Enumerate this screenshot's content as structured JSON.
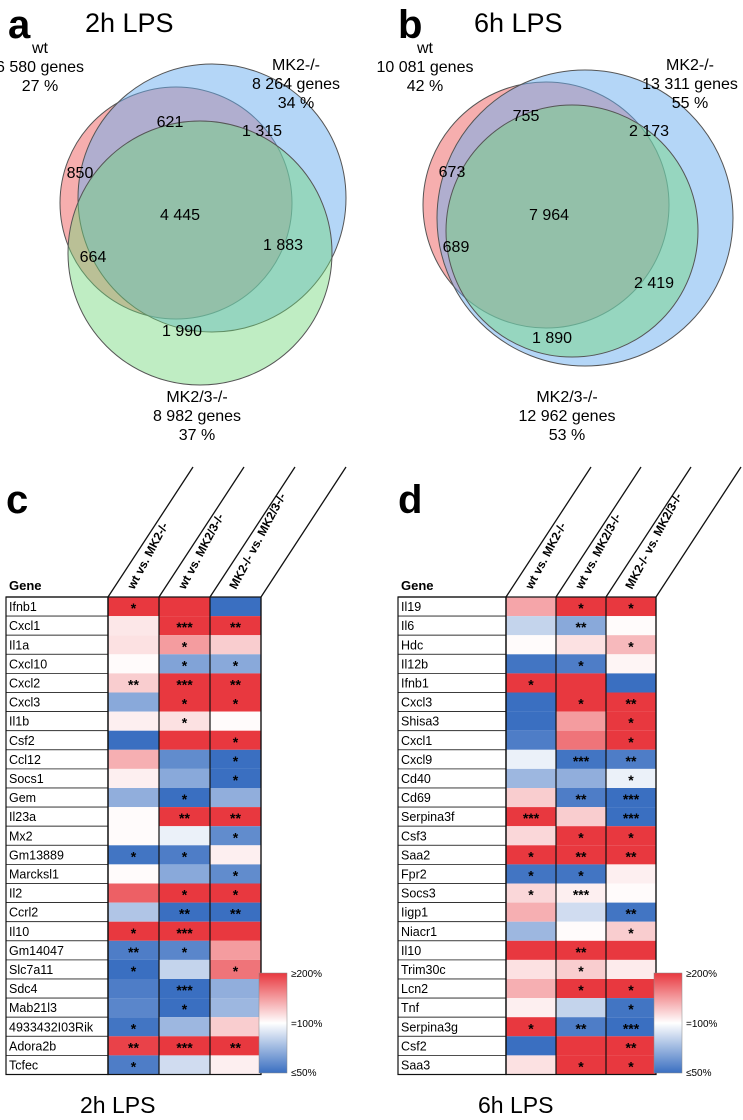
{
  "panels": {
    "a": {
      "label": "a",
      "title": "2h LPS",
      "sets": [
        {
          "lines": [
            "wt",
            "6 580 genes",
            "27 %"
          ],
          "color": "#ef6b6b"
        },
        {
          "lines": [
            "MK2-/-",
            "8 264 genes",
            "34 %"
          ],
          "color": "#6aaef0"
        },
        {
          "lines": [
            "MK2/3-/-",
            "8 982 genes",
            "37 %"
          ],
          "color": "#72d87a"
        }
      ],
      "regions": {
        "wt_only": "850",
        "wt_mk2": "621",
        "mk2_only": "1 315",
        "all": "4 445",
        "wt_mk23": "664",
        "mk2_mk23": "1 883",
        "mk23_only": "1 990"
      }
    },
    "b": {
      "label": "b",
      "title": "6h LPS",
      "sets": [
        {
          "lines": [
            "wt",
            "10 081 genes",
            "42 %"
          ],
          "color": "#ef6b6b"
        },
        {
          "lines": [
            "MK2-/-",
            "13 311 genes",
            "55 %"
          ],
          "color": "#6aaef0"
        },
        {
          "lines": [
            "MK2/3-/-",
            "12 962 genes",
            "53 %"
          ],
          "color": "#72d87a"
        }
      ],
      "regions": {
        "wt_only": "673",
        "wt_mk2": "755",
        "mk2_only": "2 173",
        "all": "7 964",
        "wt_mk23": "689",
        "mk2_mk23": "2 419",
        "mk23_only": "1 890"
      }
    },
    "c": {
      "label": "c",
      "title": "2h LPS",
      "gene_header": "Gene",
      "columns": [
        "wt vs. MK2-/-",
        "wt vs. MK2/3-/-",
        "MK2-/- vs. MK2/3-/-"
      ],
      "rows": [
        {
          "gene": "Ifnb1",
          "v": [
            220,
            230,
            45
          ],
          "s": [
            "*",
            "",
            ""
          ]
        },
        {
          "gene": "Cxcl1",
          "v": [
            112,
            200,
            200
          ],
          "s": [
            "",
            "***",
            "**"
          ]
        },
        {
          "gene": "Il1a",
          "v": [
            115,
            150,
            125
          ],
          "s": [
            "",
            "*",
            ""
          ]
        },
        {
          "gene": "Cxcl10",
          "v": [
            102,
            68,
            70
          ],
          "s": [
            "",
            "*",
            "*"
          ]
        },
        {
          "gene": "Cxcl2",
          "v": [
            125,
            200,
            200
          ],
          "s": [
            "**",
            "***",
            "**"
          ]
        },
        {
          "gene": "Cxcl3",
          "v": [
            70,
            200,
            200
          ],
          "s": [
            "",
            "*",
            "*"
          ]
        },
        {
          "gene": "Il1b",
          "v": [
            108,
            115,
            102
          ],
          "s": [
            "",
            "*",
            ""
          ]
        },
        {
          "gene": "Csf2",
          "v": [
            48,
            200,
            200
          ],
          "s": [
            "",
            "",
            "*"
          ]
        },
        {
          "gene": "Ccl12",
          "v": [
            140,
            60,
            45
          ],
          "s": [
            "",
            "",
            "*"
          ]
        },
        {
          "gene": "Socs1",
          "v": [
            108,
            70,
            48
          ],
          "s": [
            "",
            "",
            "*"
          ]
        },
        {
          "gene": "Gem",
          "v": [
            72,
            50,
            72
          ],
          "s": [
            "",
            "*",
            ""
          ]
        },
        {
          "gene": "Il23a",
          "v": [
            102,
            200,
            200
          ],
          "s": [
            "",
            "**",
            "**"
          ]
        },
        {
          "gene": "Mx2",
          "v": [
            102,
            95,
            60
          ],
          "s": [
            "",
            "",
            "*"
          ]
        },
        {
          "gene": "Gm13889",
          "v": [
            52,
            55,
            108
          ],
          "s": [
            "*",
            "*",
            ""
          ]
        },
        {
          "gene": "Marcksl1",
          "v": [
            102,
            70,
            60
          ],
          "s": [
            "",
            "",
            "*"
          ]
        },
        {
          "gene": "Il2",
          "v": [
            180,
            200,
            200
          ],
          "s": [
            "",
            "*",
            "*"
          ]
        },
        {
          "gene": "Ccrl2",
          "v": [
            80,
            50,
            50
          ],
          "s": [
            "",
            "**",
            "**"
          ]
        },
        {
          "gene": "Il10",
          "v": [
            200,
            200,
            200
          ],
          "s": [
            "*",
            "***",
            ""
          ]
        },
        {
          "gene": "Gm14047",
          "v": [
            55,
            58,
            150
          ],
          "s": [
            "**",
            "*",
            ""
          ]
        },
        {
          "gene": "Slc7a11",
          "v": [
            50,
            85,
            170
          ],
          "s": [
            "*",
            "",
            "*"
          ]
        },
        {
          "gene": "Sdc4",
          "v": [
            55,
            50,
            72
          ],
          "s": [
            "",
            "***",
            ""
          ]
        },
        {
          "gene": "Mab21l3",
          "v": [
            58,
            50,
            75
          ],
          "s": [
            "",
            "*",
            ""
          ]
        },
        {
          "gene": "4933432I03Rik",
          "v": [
            52,
            75,
            125
          ],
          "s": [
            "*",
            "",
            ""
          ]
        },
        {
          "gene": "Adora2b",
          "v": [
            195,
            200,
            200
          ],
          "s": [
            "**",
            "***",
            "**"
          ]
        },
        {
          "gene": "Tcfec",
          "v": [
            55,
            88,
            108
          ],
          "s": [
            "*",
            "",
            ""
          ]
        }
      ],
      "legend": {
        "top": "≥200%",
        "mid": "=100%",
        "bottom": "≤50%"
      }
    },
    "d": {
      "label": "d",
      "title": "6h LPS",
      "gene_header": "Gene",
      "columns": [
        "wt vs. MK2-/-",
        "wt vs. MK2/3-/-",
        "MK2-/- vs. MK2/3-/-"
      ],
      "rows": [
        {
          "gene": "Il19",
          "v": [
            145,
            200,
            200
          ],
          "s": [
            "",
            "*",
            "*"
          ]
        },
        {
          "gene": "Il6",
          "v": [
            85,
            70,
            102
          ],
          "s": [
            "",
            "**",
            ""
          ]
        },
        {
          "gene": "Hdc",
          "v": [
            102,
            115,
            135
          ],
          "s": [
            "",
            "",
            "*"
          ]
        },
        {
          "gene": "Il12b",
          "v": [
            52,
            55,
            105
          ],
          "s": [
            "",
            "*",
            ""
          ]
        },
        {
          "gene": "Ifnb1",
          "v": [
            200,
            200,
            48
          ],
          "s": [
            "*",
            "",
            ""
          ]
        },
        {
          "gene": "Cxcl3",
          "v": [
            48,
            200,
            200
          ],
          "s": [
            "",
            "*",
            "**"
          ]
        },
        {
          "gene": "Shisa3",
          "v": [
            48,
            150,
            200
          ],
          "s": [
            "",
            "",
            "*"
          ]
        },
        {
          "gene": "Cxcl1",
          "v": [
            55,
            170,
            200
          ],
          "s": [
            "",
            "",
            "*"
          ]
        },
        {
          "gene": "Cxcl9",
          "v": [
            95,
            52,
            55
          ],
          "s": [
            "",
            "***",
            "**"
          ]
        },
        {
          "gene": "Cd40",
          "v": [
            75,
            72,
            95
          ],
          "s": [
            "",
            "",
            "*"
          ]
        },
        {
          "gene": "Cd69",
          "v": [
            125,
            55,
            50
          ],
          "s": [
            "",
            "**",
            "***"
          ]
        },
        {
          "gene": "Serpina3f",
          "v": [
            200,
            125,
            50
          ],
          "s": [
            "***",
            "",
            "***"
          ]
        },
        {
          "gene": "Csf3",
          "v": [
            120,
            200,
            200
          ],
          "s": [
            "",
            "*",
            "*"
          ]
        },
        {
          "gene": "Saa2",
          "v": [
            200,
            200,
            200
          ],
          "s": [
            "*",
            "**",
            "**"
          ]
        },
        {
          "gene": "Fpr2",
          "v": [
            52,
            52,
            108
          ],
          "s": [
            "*",
            "*",
            ""
          ]
        },
        {
          "gene": "Socs3",
          "v": [
            120,
            108,
            102
          ],
          "s": [
            "*",
            "***",
            ""
          ]
        },
        {
          "gene": "Iigp1",
          "v": [
            140,
            88,
            52
          ],
          "s": [
            "",
            "",
            "**"
          ]
        },
        {
          "gene": "Niacr1",
          "v": [
            75,
            102,
            125
          ],
          "s": [
            "",
            "",
            "*"
          ]
        },
        {
          "gene": "Il10",
          "v": [
            200,
            200,
            200
          ],
          "s": [
            "",
            "**",
            ""
          ]
        },
        {
          "gene": "Trim30c",
          "v": [
            115,
            125,
            110
          ],
          "s": [
            "",
            "*",
            ""
          ]
        },
        {
          "gene": "Lcn2",
          "v": [
            140,
            200,
            200
          ],
          "s": [
            "",
            "*",
            "*"
          ]
        },
        {
          "gene": "Tnf",
          "v": [
            108,
            85,
            52
          ],
          "s": [
            "",
            "",
            "*"
          ]
        },
        {
          "gene": "Serpina3g",
          "v": [
            200,
            55,
            50
          ],
          "s": [
            "*",
            "**",
            "***"
          ]
        },
        {
          "gene": "Csf2",
          "v": [
            50,
            200,
            200
          ],
          "s": [
            "",
            "",
            "**"
          ]
        },
        {
          "gene": "Saa3",
          "v": [
            115,
            200,
            200
          ],
          "s": [
            "",
            "*",
            "*"
          ]
        }
      ],
      "legend": {
        "top": "≥200%",
        "mid": "=100%",
        "bottom": "≤50%"
      }
    }
  },
  "colors": {
    "red": "#e8383f",
    "white": "#ffffff",
    "blue": "#3a6fc1"
  }
}
